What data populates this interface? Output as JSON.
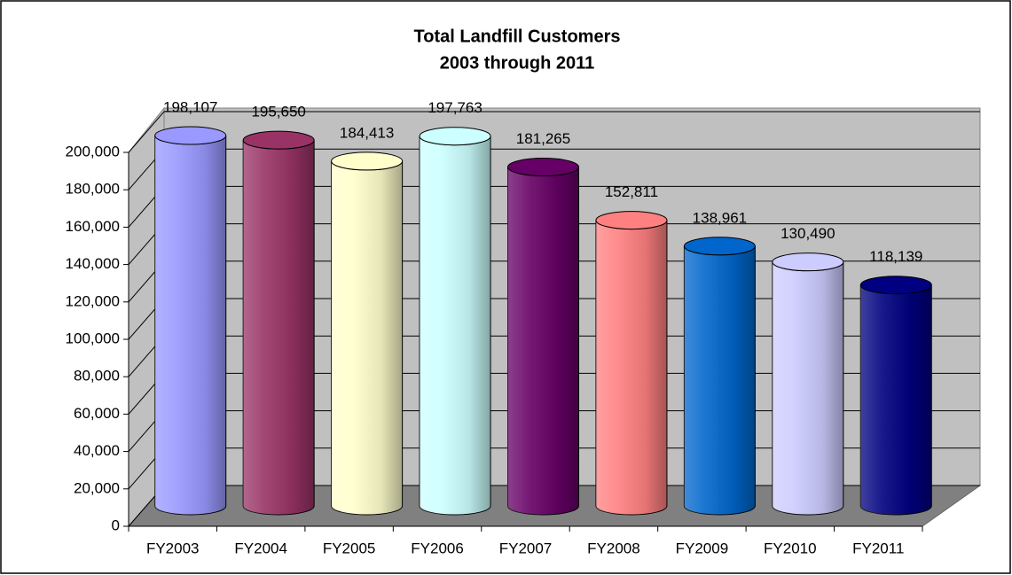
{
  "chart_data": {
    "type": "bar3d",
    "title": "Total Landfill Customers",
    "subtitle": "2003 through 2011",
    "categories": [
      "FY2003",
      "FY2004",
      "FY2005",
      "FY2006",
      "FY2007",
      "FY2008",
      "FY2009",
      "FY2010",
      "FY2011"
    ],
    "values": [
      198107,
      195650,
      184413,
      197763,
      181265,
      152811,
      138961,
      130490,
      118139
    ],
    "value_labels": [
      "198,107",
      "195,650",
      "184,413",
      "197,763",
      "181,265",
      "152,811",
      "138,961",
      "130,490",
      "118,139"
    ],
    "colors": [
      "#9999ff",
      "#993366",
      "#ffffcc",
      "#ccffff",
      "#660066",
      "#ff8080",
      "#0066cc",
      "#ccccff",
      "#000080"
    ],
    "ylim": [
      0,
      200000
    ],
    "yticks": [
      0,
      {
        "value": 20000,
        "label": "20,000"
      },
      {
        "value": 40000,
        "label": "40,000"
      },
      {
        "value": 60000,
        "label": "60,000"
      },
      {
        "value": 80000,
        "label": "80,000"
      },
      {
        "value": 100000,
        "label": "100,000"
      },
      {
        "value": 120000,
        "label": "120,000"
      },
      {
        "value": 140000,
        "label": "140,000"
      },
      {
        "value": 160000,
        "label": "160,000"
      },
      {
        "value": 180000,
        "label": "180,000"
      },
      {
        "value": 200000,
        "label": "200,000"
      }
    ],
    "grid": true
  }
}
